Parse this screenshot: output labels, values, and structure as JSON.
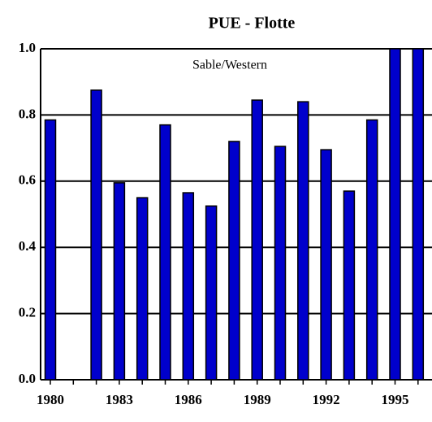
{
  "chart_data": {
    "type": "bar",
    "title": "PUE - Flotte",
    "annotation": "Sable/Western",
    "categories": [
      "1980",
      null,
      null,
      "1983",
      null,
      null,
      "1986",
      null,
      null,
      "1989",
      null,
      null,
      "1992",
      null,
      null,
      "1995",
      null
    ],
    "values": [
      0.785,
      null,
      0.875,
      0.595,
      0.55,
      0.77,
      0.565,
      0.525,
      0.72,
      0.845,
      0.705,
      0.84,
      0.695,
      0.57,
      0.785,
      1.0,
      1.0
    ],
    "color": "#0000cc",
    "ylim": [
      0,
      1
    ],
    "yticks": [
      {
        "value": 0,
        "label": "0.0"
      },
      0.2,
      0.4,
      0.6,
      0.8,
      {
        "value": 1,
        "label": "1.0"
      }
    ],
    "grid": true
  }
}
